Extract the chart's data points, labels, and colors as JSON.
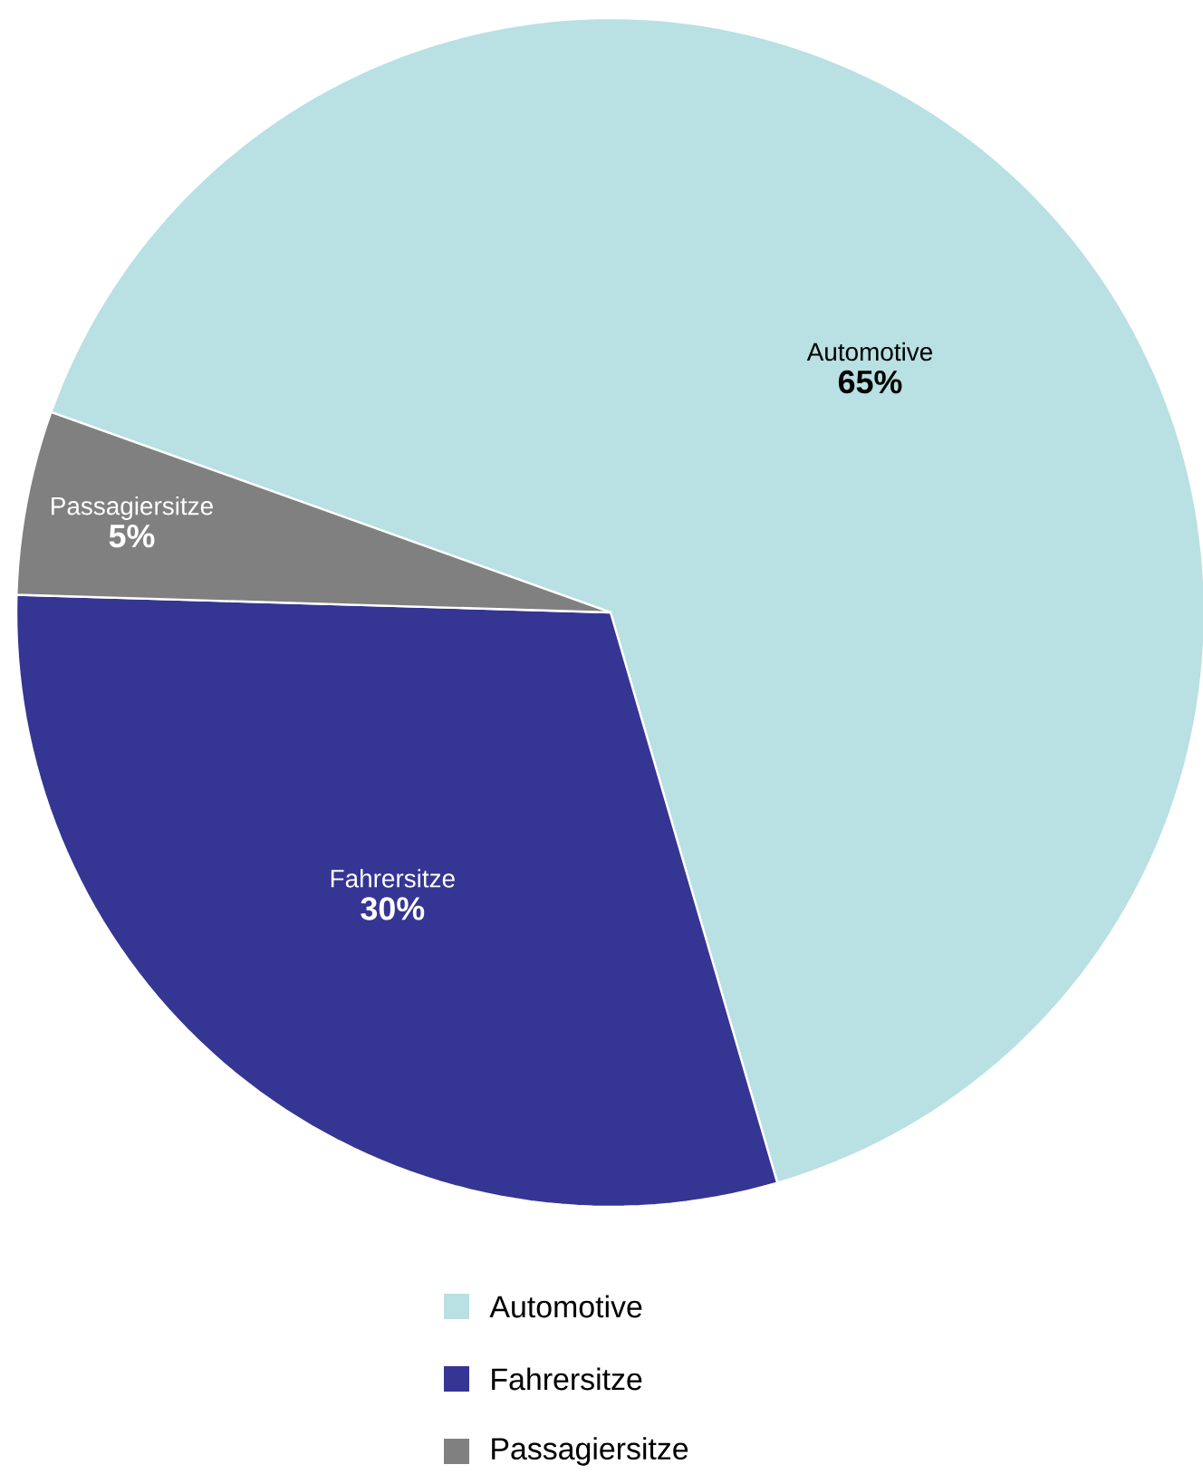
{
  "chart_data": {
    "type": "pie",
    "categories": [
      "Automotive",
      "Fahrersitze",
      "Passagiersitze"
    ],
    "values": [
      65,
      30,
      5
    ],
    "colors": [
      "#b9e0e3",
      "#353594",
      "#808080"
    ],
    "value_labels": [
      "65%",
      "30%",
      "5%"
    ],
    "legend": "bottom"
  }
}
